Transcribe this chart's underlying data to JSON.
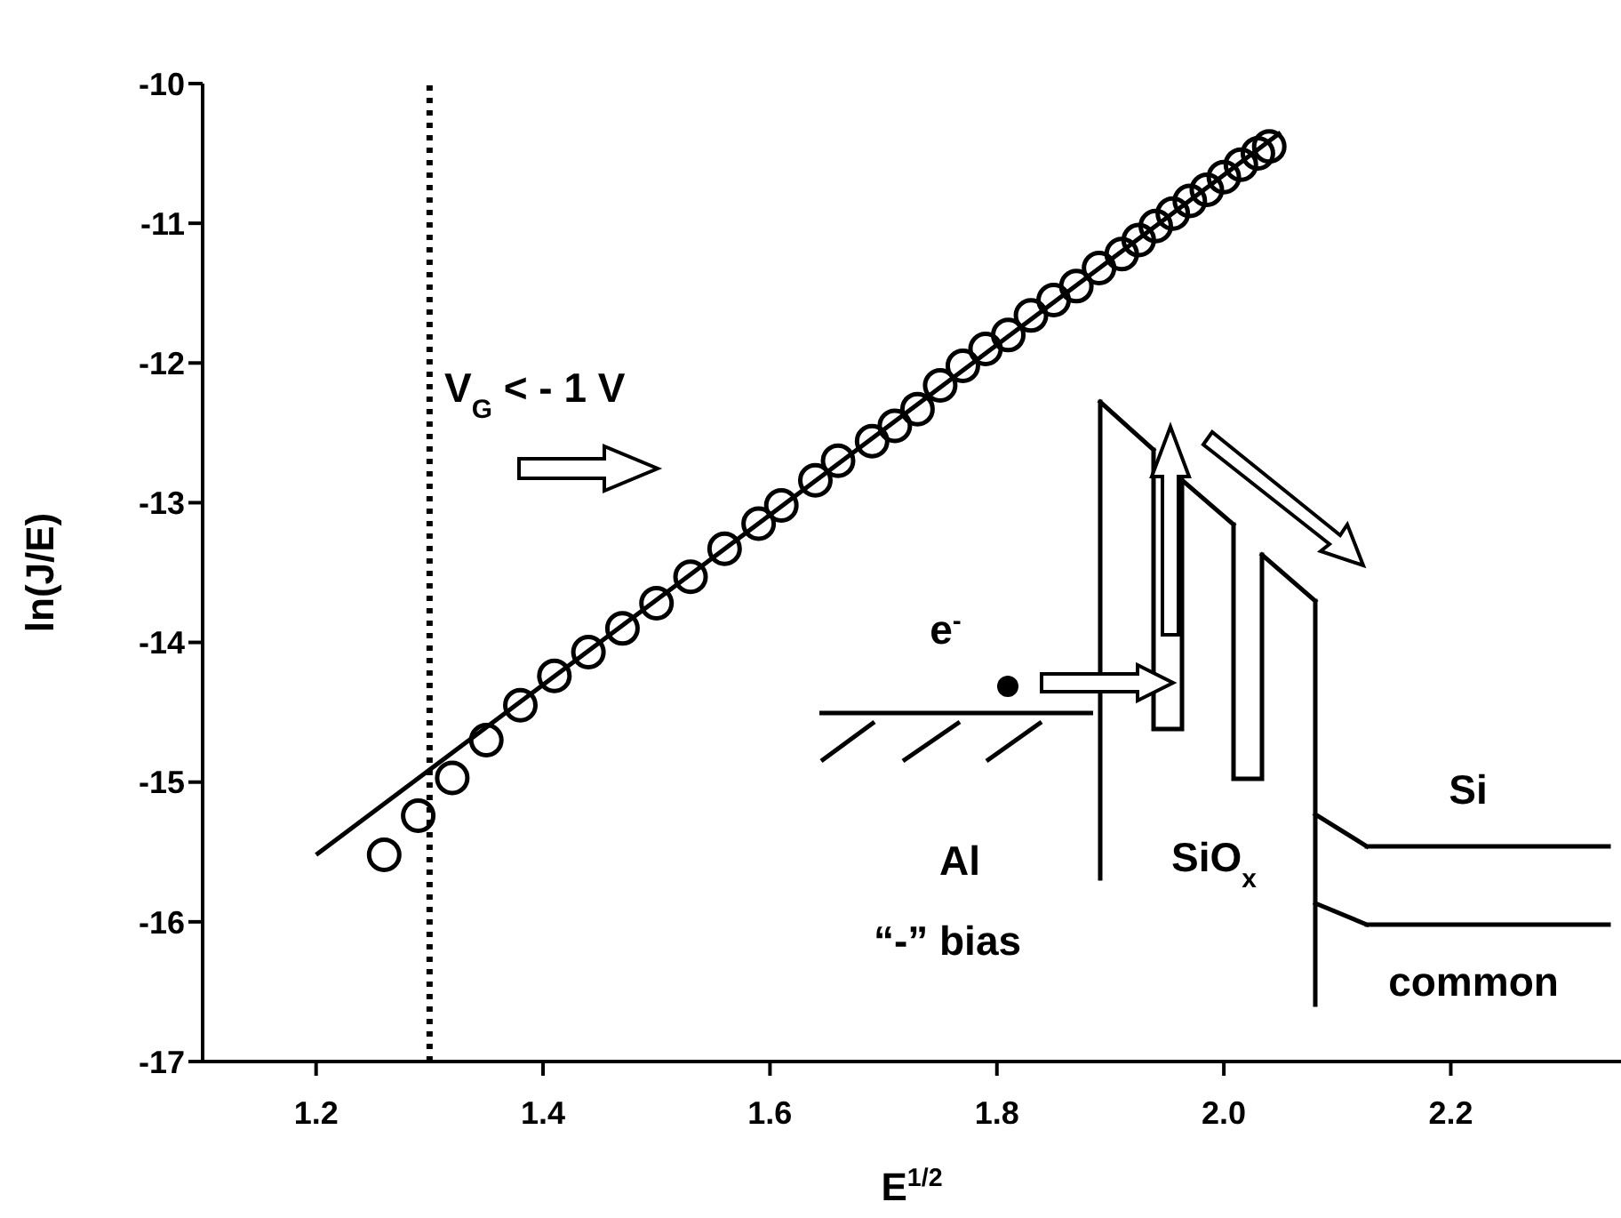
{
  "chart_data": {
    "type": "scatter",
    "xlabel": "E$^{1/2}$",
    "ylabel": "ln(J/E)",
    "xlim": [
      1.1,
      2.35
    ],
    "xticks": [
      {
        "value": 1.2,
        "label": "1.2"
      },
      {
        "value": 1.4,
        "label": "1.4"
      },
      {
        "value": 1.6,
        "label": "1.6"
      },
      {
        "value": 1.8,
        "label": "1.8"
      },
      {
        "value": 2.0,
        "label": "2.0"
      },
      {
        "value": 2.2,
        "label": "2.2"
      }
    ],
    "ylim": [
      -17,
      -10
    ],
    "yticks": [
      -17,
      -16,
      -15,
      -14,
      -13,
      -12,
      -11,
      -10
    ],
    "grid": false,
    "legend": false,
    "marker": "circle",
    "series": [
      {
        "type": "scatter",
        "color": "#000000",
        "x": [
          1.26,
          1.29,
          1.32,
          1.35,
          1.38,
          1.41,
          1.44,
          1.47,
          1.5,
          1.53,
          1.56,
          1.59,
          1.61,
          1.64,
          1.66,
          1.69,
          1.71,
          1.73,
          1.75,
          1.77,
          1.79,
          1.81,
          1.83,
          1.85,
          1.87,
          1.89,
          1.91,
          1.925,
          1.94,
          1.955,
          1.97,
          1.985,
          2.0,
          2.015,
          2.03,
          2.04
        ],
        "values": [
          -15.52,
          -15.24,
          -14.97,
          -14.7,
          -14.45,
          -14.24,
          -14.07,
          -13.9,
          -13.72,
          -13.53,
          -13.33,
          -13.15,
          -13.02,
          -12.84,
          -12.7,
          -12.56,
          -12.45,
          -12.33,
          -12.16,
          -12.02,
          -11.9,
          -11.8,
          -11.66,
          -11.55,
          -11.45,
          -11.32,
          -11.22,
          -11.12,
          -11.02,
          -10.93,
          -10.84,
          -10.76,
          -10.67,
          -10.58,
          -10.5,
          -10.45
        ]
      },
      {
        "type": "line",
        "color": "#000000",
        "line_style": "solid",
        "marker": "none",
        "x": [
          1.2,
          2.05
        ],
        "values": [
          -15.52,
          -10.35
        ]
      }
    ],
    "ref_lines": [
      {
        "axis": "x",
        "value": 1.3,
        "color": "#000000",
        "line_style": "dotted"
      }
    ],
    "annotations": [
      "V$_{G}$ < - 1 V",
      "e$^{-}$",
      "Al",
      "“-” bias",
      "SiO$_{x}$",
      "Si",
      "common"
    ]
  }
}
